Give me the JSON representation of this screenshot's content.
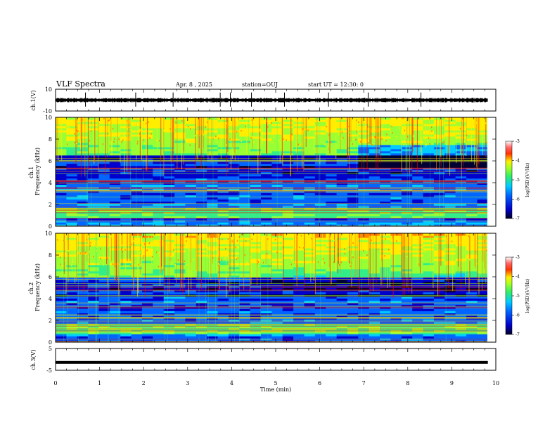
{
  "header": {
    "title": "VLF Spectra",
    "date": "Apr. 8 , 2025",
    "station": "station=OUJ",
    "start": "start UT = 12:30: 0"
  },
  "chart_data": [
    {
      "type": "line",
      "name": "ch1-waveform",
      "ylabel": "ch.1(V)",
      "ylim": [
        -10,
        10
      ],
      "yticks": [
        "10",
        "-10"
      ],
      "xlim": [
        0,
        10
      ],
      "level_mean": 0,
      "spikes_min": [
        0.68,
        1.82,
        2.67,
        3.74,
        3.97,
        4.45,
        5.2,
        6.2,
        7.1,
        8.3
      ]
    },
    {
      "type": "heatmap",
      "name": "ch1-spectrogram",
      "ylabel": "ch.1 Frequency (kHz)",
      "ylim": [
        0,
        10
      ],
      "yticks": [
        "0",
        "2",
        "4",
        "6",
        "8",
        "10"
      ],
      "xlim": [
        0,
        9.82
      ],
      "colorbar": {
        "label": "log(PSD)(V²/Hz)",
        "range": [
          -7,
          -3
        ],
        "ticks": [
          "-3",
          "-4",
          "-5",
          "-6",
          "-7"
        ]
      },
      "bands_khz": {
        "high_emission": [
          6.5,
          10
        ],
        "quiet": [
          4.5,
          6.5
        ],
        "low_emission": [
          0.8,
          1.8
        ]
      }
    },
    {
      "type": "heatmap",
      "name": "ch2-spectrogram",
      "ylabel": "ch.2 Frequency (kHz)",
      "ylim": [
        0,
        10
      ],
      "yticks": [
        "0",
        "2",
        "4",
        "6",
        "8",
        "10"
      ],
      "xlim": [
        0,
        9.82
      ],
      "colorbar": {
        "label": "log(PSD)(V²/Hz)",
        "range": [
          -7,
          -3
        ],
        "ticks": [
          "-3",
          "-4",
          "-5",
          "-6",
          "-7"
        ]
      },
      "bands_khz": {
        "high_emission": [
          6.0,
          10
        ],
        "quiet": [
          4.0,
          6.0
        ],
        "low_emission": [
          0.8,
          1.8
        ]
      }
    },
    {
      "type": "line",
      "name": "ch3-waveform",
      "ylabel": "ch.3(V)",
      "ylim": [
        -5,
        5
      ],
      "yticks": [
        "5",
        "-5"
      ],
      "xlim": [
        0,
        10
      ],
      "level_mean": -1.4
    }
  ],
  "xaxis": {
    "label": "Time (min)",
    "ticks": [
      "0",
      "1",
      "2",
      "3",
      "4",
      "5",
      "6",
      "7",
      "8",
      "9",
      "10"
    ]
  },
  "colors": {
    "frame": "#000000",
    "colormap": [
      "#000033",
      "#0000cc",
      "#0066ff",
      "#00ccff",
      "#33ee88",
      "#99ff33",
      "#ffee00",
      "#ff8800",
      "#ff0000",
      "#ffffff"
    ]
  }
}
